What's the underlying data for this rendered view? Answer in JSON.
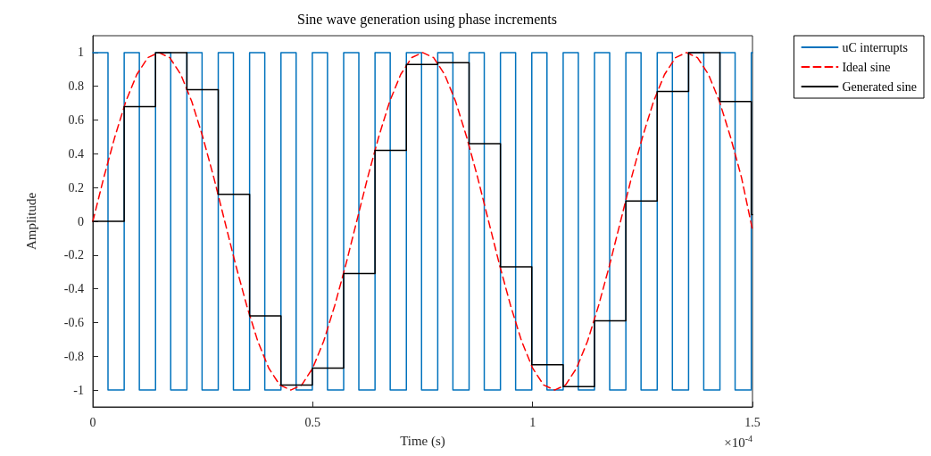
{
  "chart_data": {
    "type": "line",
    "title": "Sine wave generation using phase increments",
    "xlabel": "Time (s)",
    "ylabel": "Amplitude",
    "annotations": [
      "×10$^{-4}$"
    ],
    "xlim": [
      0,
      1.5
    ],
    "xticks": [
      0,
      0.5,
      1,
      1.5
    ],
    "ylim": [
      -1.1,
      1.1
    ],
    "yticks": [
      -1,
      -0.8,
      -0.6,
      -0.4,
      -0.2,
      0,
      0.2,
      0.4,
      0.6,
      0.8,
      1
    ],
    "grid": false,
    "legend": "right",
    "marker": "none",
    "series": [
      {
        "name": "uC interrupts",
        "type": "step",
        "color": "#0072bd",
        "line_style": "solid",
        "x": [
          0,
          0.0345,
          0.0713,
          0.1058,
          0.1426,
          0.1771,
          0.2139,
          0.2484,
          0.2852,
          0.3197,
          0.3565,
          0.391,
          0.4278,
          0.4623,
          0.4991,
          0.5336,
          0.5704,
          0.6049,
          0.6417,
          0.6762,
          0.713,
          0.7475,
          0.7843,
          0.8188,
          0.8556,
          0.8901,
          0.9269,
          0.9614,
          0.9982,
          1.0327,
          1.0695,
          1.104,
          1.1408,
          1.1753,
          1.2121,
          1.2466,
          1.2834,
          1.3179,
          1.3547,
          1.3892,
          1.426,
          1.4605,
          1.4973,
          1.5
        ],
        "values": [
          1,
          -1,
          1,
          -1,
          1,
          -1,
          1,
          -1,
          1,
          -1,
          1,
          -1,
          1,
          -1,
          1,
          -1,
          1,
          -1,
          1,
          -1,
          1,
          -1,
          1,
          -1,
          1,
          -1,
          1,
          -1,
          1,
          -1,
          1,
          -1,
          1,
          -1,
          1,
          -1,
          1,
          -1,
          1,
          -1,
          1,
          -1,
          1,
          1
        ]
      },
      {
        "name": "Ideal sine",
        "color": "#ff0000",
        "line_style": "dashed",
        "x": [
          0,
          0.025,
          0.05,
          0.075,
          0.1,
          0.125,
          0.15,
          0.175,
          0.2,
          0.225,
          0.25,
          0.275,
          0.3,
          0.325,
          0.35,
          0.375,
          0.4,
          0.425,
          0.45,
          0.475,
          0.5,
          0.525,
          0.55,
          0.575,
          0.6,
          0.625,
          0.65,
          0.675,
          0.7,
          0.725,
          0.75,
          0.775,
          0.8,
          0.825,
          0.85,
          0.875,
          0.9,
          0.925,
          0.95,
          0.975,
          1,
          1.025,
          1.05,
          1.075,
          1.1,
          1.125,
          1.15,
          1.175,
          1.2,
          1.225,
          1.25,
          1.275,
          1.3,
          1.325,
          1.35,
          1.375,
          1.4,
          1.425,
          1.45,
          1.475,
          1.5
        ],
        "values": [
          0,
          0.26,
          0.5,
          0.71,
          0.87,
          0.97,
          1,
          0.97,
          0.87,
          0.71,
          0.5,
          0.26,
          0,
          -0.26,
          -0.5,
          -0.71,
          -0.87,
          -0.97,
          -1,
          -0.97,
          -0.87,
          -0.71,
          -0.5,
          -0.26,
          0,
          0.26,
          0.5,
          0.71,
          0.87,
          0.97,
          1,
          0.97,
          0.87,
          0.71,
          0.5,
          0.26,
          0,
          -0.26,
          -0.5,
          -0.71,
          -0.87,
          -0.97,
          -1,
          -0.97,
          -0.87,
          -0.71,
          -0.5,
          -0.26,
          0,
          0.26,
          0.5,
          0.71,
          0.87,
          0.97,
          1,
          0.97,
          0.87,
          0.71,
          0.5,
          0.26,
          -0.05
        ]
      },
      {
        "name": "Generated sine",
        "type": "step",
        "color": "#000000",
        "line_style": "solid",
        "x": [
          0,
          0.0713,
          0.1426,
          0.2139,
          0.2852,
          0.3565,
          0.4278,
          0.4991,
          0.5704,
          0.6417,
          0.713,
          0.7843,
          0.8556,
          0.9269,
          0.9982,
          1.0695,
          1.1408,
          1.2121,
          1.2834,
          1.3547,
          1.426,
          1.4973,
          1.5
        ],
        "values": [
          0,
          0.68,
          1,
          0.78,
          0.16,
          -0.56,
          -0.97,
          -0.87,
          -0.31,
          0.42,
          0.93,
          0.94,
          0.46,
          -0.27,
          -0.85,
          -0.98,
          -0.59,
          0.12,
          0.77,
          1,
          0.71,
          0.04,
          0.04
        ]
      }
    ]
  }
}
